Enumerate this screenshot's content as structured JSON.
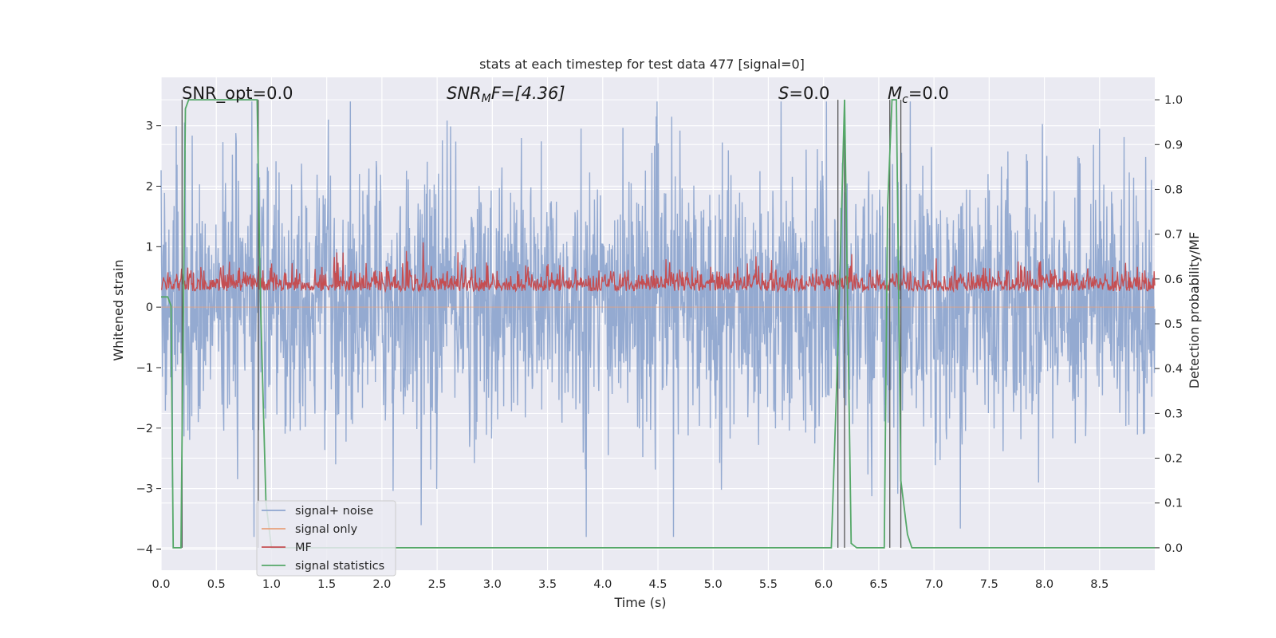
{
  "chart_data": {
    "type": "line",
    "title": "stats at each timestep for test data 477 [signal=0]",
    "xlabel": "Time (s)",
    "ylabel": "Whitened strain",
    "y2label": "Detection probability/MF",
    "xlim": [
      0,
      9.0
    ],
    "ylim": [
      -4.35,
      3.8
    ],
    "y2lim": [
      -0.05,
      1.05
    ],
    "x_ticks": [
      "0.0",
      "0.5",
      "1.0",
      "1.5",
      "2.0",
      "2.5",
      "3.0",
      "3.5",
      "4.0",
      "4.5",
      "5.0",
      "5.5",
      "6.0",
      "6.5",
      "7.0",
      "7.5",
      "8.0",
      "8.5"
    ],
    "y_ticks": [
      "3",
      "2",
      "1",
      "0",
      "−1",
      "−2",
      "−3",
      "−4"
    ],
    "y2_ticks": [
      "1.0",
      "0.9",
      "0.8",
      "0.7",
      "0.6",
      "0.5",
      "0.4",
      "0.3",
      "0.2",
      "0.1",
      "0.0"
    ],
    "grid": true,
    "legend_position": "lower-left",
    "annotations": {
      "snr_opt": "SNR_opt=0.0",
      "snr_mf_a": "SNR",
      "snr_mf_sub": "M",
      "snr_mf_b": "F=[4.36]",
      "s_sym": "S",
      "s_val": "=0.0",
      "mc_sym": "M",
      "mc_sub": "c",
      "mc_val": "=0.0"
    },
    "series": [
      {
        "name": "signal+ noise",
        "color": "#8fa6cf",
        "axis": "left",
        "amplitude_range": [
          -3.8,
          3.4
        ],
        "typical_envelope": [
          -1.9,
          2.1
        ]
      },
      {
        "name": "signal only",
        "color": "#e8a07c",
        "axis": "left",
        "values": "constant 0"
      },
      {
        "name": "MF",
        "color": "#c44e52",
        "axis": "right",
        "range": [
          0.54,
          0.72
        ],
        "typical_range": [
          0.555,
          0.64
        ]
      },
      {
        "name": "signal statistics",
        "color": "#55a868",
        "axis": "right",
        "x": [
          0.0,
          0.06,
          0.09,
          0.11,
          0.13,
          0.18,
          0.22,
          0.25,
          0.5,
          0.75,
          0.87,
          0.9,
          0.95,
          1.0,
          2.0,
          3.0,
          4.0,
          5.0,
          6.0,
          6.07,
          6.13,
          6.19,
          6.25,
          6.3,
          6.5,
          6.55,
          6.58,
          6.62,
          6.66,
          6.7,
          6.76,
          6.8,
          6.85,
          7.5,
          8.0,
          9.0
        ],
        "y": [
          0.56,
          0.56,
          0.54,
          0.0,
          0.0,
          0.0,
          0.98,
          1.0,
          1.0,
          1.0,
          1.0,
          0.55,
          0.1,
          0.0,
          0.0,
          0.0,
          0.0,
          0.0,
          0.0,
          0.0,
          0.45,
          1.0,
          0.01,
          0.0,
          0.0,
          0.0,
          0.76,
          1.0,
          1.0,
          0.15,
          0.03,
          0.0,
          0.0,
          0.0,
          0.0,
          0.0
        ]
      }
    ],
    "vertical_markers": [
      0.19,
      0.88,
      6.13,
      6.19,
      6.6,
      6.7
    ]
  }
}
